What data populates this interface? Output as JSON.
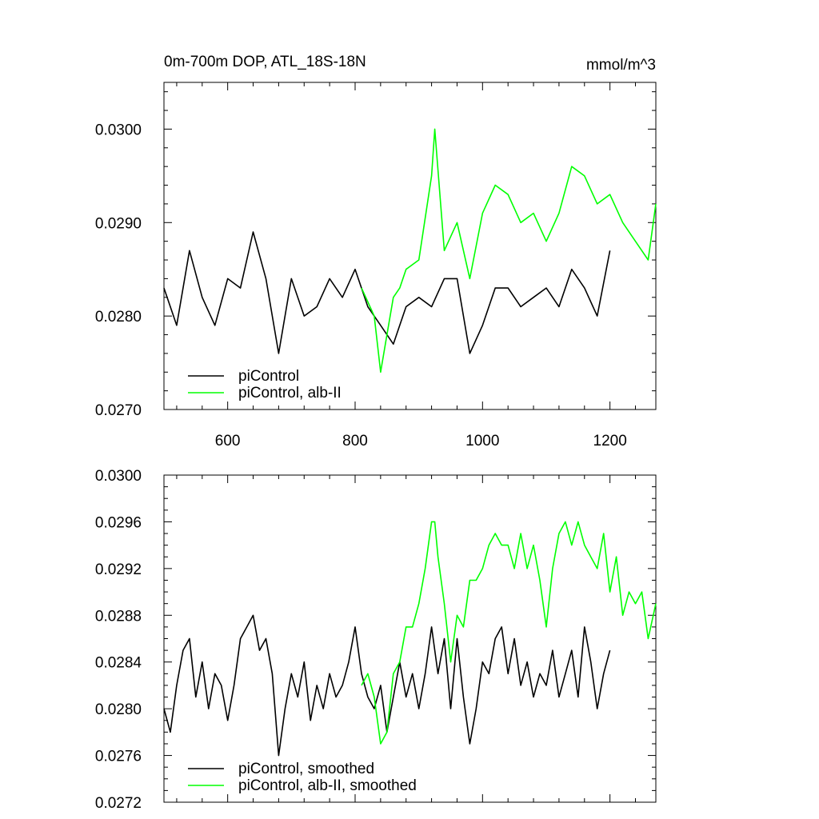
{
  "chart_data": [
    {
      "type": "line",
      "title": "0m-700m DOP, ATL_18S-18N",
      "units": "mmol/m^3",
      "xlim": [
        500,
        1272
      ],
      "ylim": [
        0.027,
        0.0305
      ],
      "x_ticks": [
        600,
        800,
        1000,
        1200
      ],
      "x_tick_labels": [
        "600",
        "800",
        "1000",
        "1200"
      ],
      "y_ticks": [
        0.027,
        0.028,
        0.029,
        0.03
      ],
      "y_tick_labels": [
        "0.0270",
        "0.0280",
        "0.0290",
        "0.0300"
      ],
      "legend_position": "bottom-left",
      "series": [
        {
          "name": "piControl",
          "color": "#000000",
          "x": [
            500,
            520,
            540,
            560,
            580,
            600,
            620,
            640,
            660,
            680,
            700,
            720,
            740,
            760,
            780,
            800,
            820,
            840,
            860,
            880,
            900,
            920,
            940,
            960,
            980,
            1000,
            1020,
            1040,
            1060,
            1080,
            1100,
            1120,
            1140,
            1160,
            1180,
            1200
          ],
          "values": [
            0.0283,
            0.0279,
            0.0287,
            0.0282,
            0.0279,
            0.0284,
            0.0283,
            0.0289,
            0.0284,
            0.0276,
            0.0284,
            0.028,
            0.0281,
            0.0284,
            0.0282,
            0.0285,
            0.0281,
            0.0279,
            0.0277,
            0.0281,
            0.0282,
            0.0281,
            0.0284,
            0.0284,
            0.0276,
            0.0279,
            0.0283,
            0.0283,
            0.0281,
            0.0282,
            0.0283,
            0.0281,
            0.0285,
            0.0283,
            0.028,
            0.0287
          ]
        },
        {
          "name": "piControl, alb-II",
          "color": "#00ff00",
          "x": [
            810,
            830,
            840,
            850,
            860,
            870,
            880,
            900,
            920,
            925,
            940,
            960,
            980,
            1000,
            1020,
            1040,
            1060,
            1080,
            1100,
            1120,
            1140,
            1160,
            1180,
            1200,
            1220,
            1240,
            1260,
            1272
          ],
          "values": [
            0.0283,
            0.028,
            0.0274,
            0.0278,
            0.0282,
            0.0283,
            0.0285,
            0.0286,
            0.0295,
            0.03,
            0.0287,
            0.029,
            0.0284,
            0.0291,
            0.0294,
            0.0293,
            0.029,
            0.0291,
            0.0288,
            0.0291,
            0.0296,
            0.0295,
            0.0292,
            0.0293,
            0.029,
            0.0288,
            0.0286,
            0.0292
          ]
        }
      ]
    },
    {
      "type": "line",
      "xlim": [
        500,
        1272
      ],
      "ylim": [
        0.0272,
        0.03
      ],
      "x_ticks": [
        600,
        800,
        1000,
        1200
      ],
      "y_ticks": [
        0.0272,
        0.0276,
        0.028,
        0.0284,
        0.0288,
        0.0292,
        0.0296,
        0.03
      ],
      "y_tick_labels": [
        "0.0272",
        "0.0276",
        "0.0280",
        "0.0284",
        "0.0288",
        "0.0292",
        "0.0296",
        "0.0300"
      ],
      "legend_position": "bottom-left",
      "series": [
        {
          "name": "piControl, smoothed",
          "color": "#000000",
          "x": [
            500,
            510,
            520,
            530,
            540,
            550,
            560,
            570,
            580,
            590,
            600,
            610,
            620,
            630,
            640,
            650,
            660,
            670,
            680,
            690,
            700,
            710,
            720,
            730,
            740,
            750,
            760,
            770,
            780,
            790,
            800,
            810,
            820,
            830,
            840,
            850,
            860,
            870,
            880,
            890,
            900,
            910,
            920,
            930,
            940,
            950,
            960,
            970,
            980,
            990,
            1000,
            1010,
            1020,
            1030,
            1040,
            1050,
            1060,
            1070,
            1080,
            1090,
            1100,
            1110,
            1120,
            1130,
            1140,
            1150,
            1160,
            1170,
            1180,
            1190,
            1200
          ],
          "values": [
            0.028,
            0.0278,
            0.0282,
            0.0285,
            0.0286,
            0.0281,
            0.0284,
            0.028,
            0.0283,
            0.0282,
            0.0279,
            0.0282,
            0.0286,
            0.0287,
            0.0288,
            0.0285,
            0.0286,
            0.0283,
            0.0276,
            0.028,
            0.0283,
            0.0281,
            0.0284,
            0.0279,
            0.0282,
            0.028,
            0.0283,
            0.0281,
            0.0282,
            0.0284,
            0.0287,
            0.0283,
            0.0281,
            0.028,
            0.0282,
            0.0278,
            0.0281,
            0.0284,
            0.0281,
            0.0283,
            0.028,
            0.0283,
            0.0287,
            0.0283,
            0.0286,
            0.028,
            0.0286,
            0.0281,
            0.0277,
            0.028,
            0.0284,
            0.0283,
            0.0286,
            0.0287,
            0.0283,
            0.0286,
            0.0282,
            0.0284,
            0.0281,
            0.0283,
            0.0282,
            0.0285,
            0.0281,
            0.0283,
            0.0285,
            0.0281,
            0.0287,
            0.0284,
            0.028,
            0.0283,
            0.0285
          ]
        },
        {
          "name": "piControl, alb-II, smoothed",
          "color": "#00ff00",
          "x": [
            810,
            820,
            830,
            840,
            850,
            860,
            870,
            880,
            890,
            900,
            910,
            920,
            925,
            930,
            940,
            950,
            960,
            970,
            980,
            990,
            1000,
            1010,
            1020,
            1030,
            1040,
            1050,
            1060,
            1070,
            1080,
            1090,
            1100,
            1110,
            1120,
            1130,
            1140,
            1150,
            1160,
            1170,
            1180,
            1190,
            1200,
            1210,
            1220,
            1230,
            1240,
            1250,
            1260,
            1272
          ],
          "values": [
            0.0282,
            0.0283,
            0.0281,
            0.0277,
            0.0278,
            0.0283,
            0.0284,
            0.0287,
            0.0287,
            0.0289,
            0.0292,
            0.0296,
            0.0296,
            0.0293,
            0.0289,
            0.0284,
            0.0288,
            0.0287,
            0.0291,
            0.0291,
            0.0292,
            0.0294,
            0.0295,
            0.0294,
            0.0294,
            0.0292,
            0.0295,
            0.0292,
            0.0294,
            0.0291,
            0.0287,
            0.0292,
            0.0295,
            0.0296,
            0.0294,
            0.0296,
            0.0294,
            0.0293,
            0.0292,
            0.0295,
            0.029,
            0.0293,
            0.0288,
            0.029,
            0.0289,
            0.029,
            0.0286,
            0.0289
          ]
        }
      ]
    }
  ]
}
